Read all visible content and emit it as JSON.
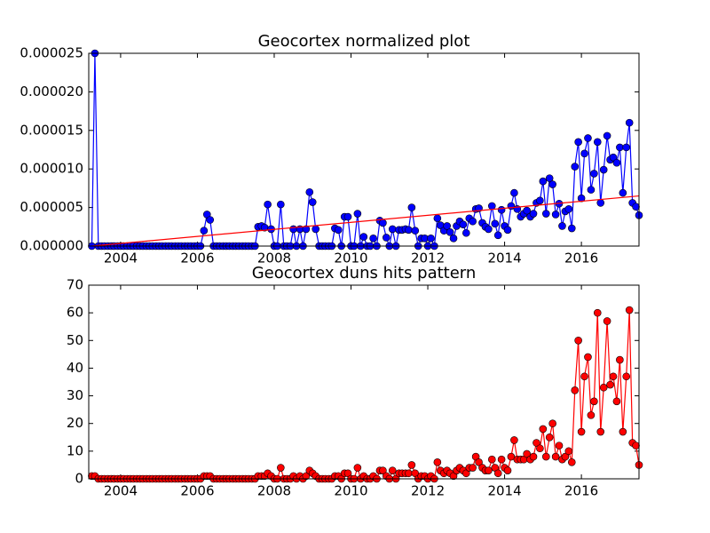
{
  "chart_data": [
    {
      "type": "line",
      "title": "Geocortex normalized plot",
      "xlim": [
        2003.17,
        2017.5
      ],
      "xticks": [
        2004,
        2006,
        2008,
        2010,
        2012,
        2014,
        2016
      ],
      "ylim": [
        0,
        2.5e-05
      ],
      "yticks": [
        {
          "value": 0,
          "label": "0.000000"
        },
        5e-06,
        {
          "value": 1e-05,
          "label": "0.000010"
        },
        1.5e-05,
        {
          "value": 2e-05,
          "label": "0.000020"
        },
        2.5e-05
      ],
      "series": [
        {
          "color": "#0000ff",
          "x": [
            2003.25,
            2003.33,
            2003.42,
            2003.5,
            2003.58,
            2003.67,
            2003.75,
            2003.83,
            2003.92,
            2004.0,
            2004.08,
            2004.17,
            2004.25,
            2004.33,
            2004.42,
            2004.5,
            2004.58,
            2004.67,
            2004.75,
            2004.83,
            2004.92,
            2005.0,
            2005.08,
            2005.17,
            2005.25,
            2005.33,
            2005.42,
            2005.5,
            2005.58,
            2005.67,
            2005.75,
            2005.83,
            2005.92,
            2006.0,
            2006.08,
            2006.17,
            2006.25,
            2006.33,
            2006.42,
            2006.5,
            2006.58,
            2006.67,
            2006.75,
            2006.83,
            2006.92,
            2007.0,
            2007.08,
            2007.17,
            2007.25,
            2007.33,
            2007.42,
            2007.5,
            2007.58,
            2007.67,
            2007.75,
            2007.83,
            2007.92,
            2008.0,
            2008.08,
            2008.17,
            2008.25,
            2008.33,
            2008.42,
            2008.5,
            2008.58,
            2008.67,
            2008.75,
            2008.83,
            2008.92,
            2009.0,
            2009.08,
            2009.17,
            2009.25,
            2009.33,
            2009.42,
            2009.5,
            2009.58,
            2009.67,
            2009.75,
            2009.83,
            2009.92,
            2010.0,
            2010.08,
            2010.17,
            2010.25,
            2010.33,
            2010.42,
            2010.5,
            2010.58,
            2010.67,
            2010.75,
            2010.83,
            2010.92,
            2011.0,
            2011.08,
            2011.17,
            2011.25,
            2011.33,
            2011.42,
            2011.5,
            2011.58,
            2011.67,
            2011.75,
            2011.83,
            2011.92,
            2012.0,
            2012.08,
            2012.17,
            2012.25,
            2012.33,
            2012.42,
            2012.5,
            2012.58,
            2012.67,
            2012.75,
            2012.83,
            2012.92,
            2013.0,
            2013.08,
            2013.17,
            2013.25,
            2013.33,
            2013.42,
            2013.5,
            2013.58,
            2013.67,
            2013.75,
            2013.83,
            2013.92,
            2014.0,
            2014.08,
            2014.17,
            2014.25,
            2014.33,
            2014.42,
            2014.5,
            2014.58,
            2014.67,
            2014.75,
            2014.83,
            2014.92,
            2015.0,
            2015.08,
            2015.17,
            2015.25,
            2015.33,
            2015.42,
            2015.5,
            2015.58,
            2015.67,
            2015.75,
            2015.83,
            2015.92,
            2016.0,
            2016.08,
            2016.17,
            2016.25,
            2016.33,
            2016.42,
            2016.5,
            2016.58,
            2016.67,
            2016.75,
            2016.83,
            2016.92,
            2017.0,
            2017.08,
            2017.17,
            2017.25,
            2017.33,
            2017.42,
            2017.5
          ],
          "values": [
            0,
            2.5e-05,
            0,
            0,
            0,
            0,
            0,
            0,
            0,
            0,
            0,
            0,
            0,
            0,
            0,
            0,
            0,
            0,
            0,
            0,
            0,
            0,
            0,
            0,
            0,
            0,
            0,
            0,
            0,
            0,
            0,
            0,
            0,
            0,
            0,
            2e-06,
            4.1e-06,
            3.4e-06,
            0,
            0,
            0,
            0,
            0,
            0,
            0,
            0,
            0,
            0,
            0,
            0,
            0,
            0,
            2.5e-06,
            2.6e-06,
            2.4e-06,
            5.4e-06,
            2.2e-06,
            0,
            0,
            5.4e-06,
            0,
            0,
            0,
            2.2e-06,
            0,
            2.2e-06,
            0,
            2.2e-06,
            7e-06,
            5.7e-06,
            2.2e-06,
            0,
            0,
            0,
            0,
            0,
            2.3e-06,
            2.1e-06,
            0,
            3.8e-06,
            3.8e-06,
            0,
            0,
            4.2e-06,
            0,
            1.2e-06,
            0,
            0,
            1e-06,
            0,
            3.3e-06,
            3e-06,
            1.1e-06,
            0,
            2.2e-06,
            0,
            2.1e-06,
            2.1e-06,
            2.2e-06,
            2.1e-06,
            5e-06,
            2e-06,
            0,
            1e-06,
            1e-06,
            0,
            1e-06,
            0,
            3.6e-06,
            2.7e-06,
            2e-06,
            2.6e-06,
            1.8e-06,
            1e-06,
            2.6e-06,
            3.2e-06,
            2.8e-06,
            1.7e-06,
            3.6e-06,
            3.2e-06,
            4.8e-06,
            4.9e-06,
            3e-06,
            2.5e-06,
            2.2e-06,
            5.2e-06,
            2.9e-06,
            1.4e-06,
            4.7e-06,
            2.6e-06,
            2.1e-06,
            5.2e-06,
            6.9e-06,
            4.8e-06,
            3.8e-06,
            4.2e-06,
            4.6e-06,
            3.8e-06,
            4.2e-06,
            5.6e-06,
            5.9e-06,
            8.4e-06,
            4.2e-06,
            8.8e-06,
            8e-06,
            4.1e-06,
            5.5e-06,
            2.6e-06,
            4.5e-06,
            4.8e-06,
            2.3e-06,
            1.03e-05,
            1.35e-05,
            6.2e-06,
            1.2e-05,
            1.4e-05,
            7.3e-06,
            9.4e-06,
            1.35e-05,
            5.6e-06,
            9.9e-06,
            1.43e-05,
            1.12e-05,
            1.15e-05,
            1.08e-05,
            1.28e-05,
            6.9e-06,
            1.28e-05,
            1.6e-05,
            5.6e-06,
            5.1e-06,
            4e-06
          ]
        }
      ],
      "trend": {
        "color": "#ff0000",
        "x": [
          2003.25,
          2017.5
        ],
        "values": [
          0,
          6.5e-06
        ]
      }
    },
    {
      "type": "line",
      "title": "Geocortex duns hits pattern",
      "xlim": [
        2003.17,
        2017.5
      ],
      "xticks": [
        2004,
        2006,
        2008,
        2010,
        2012,
        2014,
        2016
      ],
      "ylim": [
        0,
        70
      ],
      "yticks": [
        0,
        10,
        20,
        30,
        40,
        50,
        60,
        70
      ],
      "series": [
        {
          "color": "#ff0000",
          "x": [
            2003.25,
            2003.33,
            2003.42,
            2003.5,
            2003.58,
            2003.67,
            2003.75,
            2003.83,
            2003.92,
            2004.0,
            2004.08,
            2004.17,
            2004.25,
            2004.33,
            2004.42,
            2004.5,
            2004.58,
            2004.67,
            2004.75,
            2004.83,
            2004.92,
            2005.0,
            2005.08,
            2005.17,
            2005.25,
            2005.33,
            2005.42,
            2005.5,
            2005.58,
            2005.67,
            2005.75,
            2005.83,
            2005.92,
            2006.0,
            2006.08,
            2006.17,
            2006.25,
            2006.33,
            2006.42,
            2006.5,
            2006.58,
            2006.67,
            2006.75,
            2006.83,
            2006.92,
            2007.0,
            2007.08,
            2007.17,
            2007.25,
            2007.33,
            2007.42,
            2007.5,
            2007.58,
            2007.67,
            2007.75,
            2007.83,
            2007.92,
            2008.0,
            2008.08,
            2008.17,
            2008.25,
            2008.33,
            2008.42,
            2008.5,
            2008.58,
            2008.67,
            2008.75,
            2008.83,
            2008.92,
            2009.0,
            2009.08,
            2009.17,
            2009.25,
            2009.33,
            2009.42,
            2009.5,
            2009.58,
            2009.67,
            2009.75,
            2009.83,
            2009.92,
            2010.0,
            2010.08,
            2010.17,
            2010.25,
            2010.33,
            2010.42,
            2010.5,
            2010.58,
            2010.67,
            2010.75,
            2010.83,
            2010.92,
            2011.0,
            2011.08,
            2011.17,
            2011.25,
            2011.33,
            2011.42,
            2011.5,
            2011.58,
            2011.67,
            2011.75,
            2011.83,
            2011.92,
            2012.0,
            2012.08,
            2012.17,
            2012.25,
            2012.33,
            2012.42,
            2012.5,
            2012.58,
            2012.67,
            2012.75,
            2012.83,
            2012.92,
            2013.0,
            2013.08,
            2013.17,
            2013.25,
            2013.33,
            2013.42,
            2013.5,
            2013.58,
            2013.67,
            2013.75,
            2013.83,
            2013.92,
            2014.0,
            2014.08,
            2014.17,
            2014.25,
            2014.33,
            2014.42,
            2014.5,
            2014.58,
            2014.67,
            2014.75,
            2014.83,
            2014.92,
            2015.0,
            2015.08,
            2015.17,
            2015.25,
            2015.33,
            2015.42,
            2015.5,
            2015.58,
            2015.67,
            2015.75,
            2015.83,
            2015.92,
            2016.0,
            2016.08,
            2016.17,
            2016.25,
            2016.33,
            2016.42,
            2016.5,
            2016.58,
            2016.67,
            2016.75,
            2016.83,
            2016.92,
            2017.0,
            2017.08,
            2017.17,
            2017.25,
            2017.33,
            2017.42,
            2017.5
          ],
          "values": [
            1,
            1,
            0,
            0,
            0,
            0,
            0,
            0,
            0,
            0,
            0,
            0,
            0,
            0,
            0,
            0,
            0,
            0,
            0,
            0,
            0,
            0,
            0,
            0,
            0,
            0,
            0,
            0,
            0,
            0,
            0,
            0,
            0,
            0,
            0,
            1,
            1,
            1,
            0,
            0,
            0,
            0,
            0,
            0,
            0,
            0,
            0,
            0,
            0,
            0,
            0,
            0,
            1,
            1,
            1,
            2,
            1,
            0,
            0,
            4,
            0,
            0,
            0,
            1,
            0,
            1,
            0,
            1,
            3,
            2,
            1,
            0,
            0,
            0,
            0,
            0,
            1,
            1,
            0,
            2,
            2,
            0,
            0,
            4,
            0,
            1,
            0,
            0,
            1,
            0,
            3,
            3,
            1,
            0,
            3,
            0,
            2,
            2,
            2,
            2,
            5,
            2,
            0,
            1,
            1,
            0,
            1,
            0,
            6,
            3,
            2,
            3,
            2,
            1,
            3,
            4,
            3,
            2,
            4,
            4,
            8,
            6,
            4,
            3,
            3,
            7,
            4,
            2,
            7,
            4,
            3,
            8,
            14,
            7,
            7,
            7,
            9,
            7,
            8,
            13,
            11,
            18,
            8,
            15,
            20,
            8,
            12,
            7,
            8,
            10,
            6,
            32,
            50,
            17,
            37,
            44,
            23,
            28,
            60,
            17,
            33,
            57,
            34,
            37,
            28,
            43,
            17,
            37,
            61,
            13,
            12,
            5
          ]
        }
      ]
    }
  ]
}
